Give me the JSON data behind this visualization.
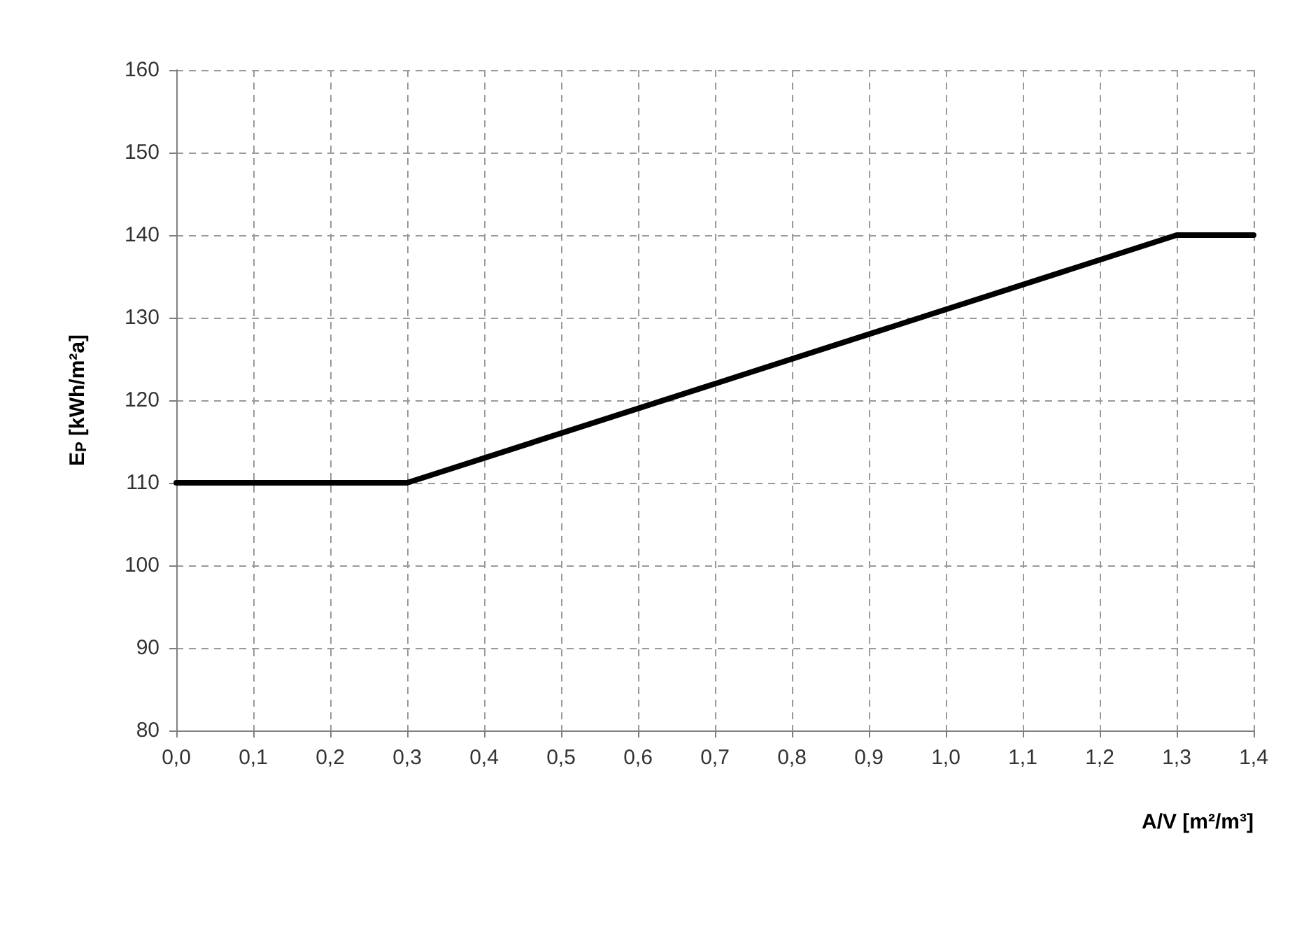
{
  "chart_data": {
    "type": "line",
    "xlabel": "A/V [m²/m³]",
    "ylabel": "E$_{P}$ [kWh/m²a]",
    "x": [
      0,
      0.3,
      1.3,
      1.4
    ],
    "series": [
      {
        "color": "#000000",
        "values": [
          110,
          110,
          140,
          140
        ]
      }
    ],
    "xlim": [
      0,
      1.4
    ],
    "xticks": [
      {
        "value": 0,
        "label": "0,0"
      },
      {
        "value": 0.1,
        "label": "0,1"
      },
      {
        "value": 0.2,
        "label": "0,2"
      },
      {
        "value": 0.3,
        "label": "0,3"
      },
      {
        "value": 0.4,
        "label": "0,4"
      },
      {
        "value": 0.5,
        "label": "0,5"
      },
      {
        "value": 0.6,
        "label": "0,6"
      },
      {
        "value": 0.7,
        "label": "0,7"
      },
      {
        "value": 0.8,
        "label": "0,8"
      },
      {
        "value": 0.9,
        "label": "0,9"
      },
      {
        "value": 1,
        "label": "1,0"
      },
      {
        "value": 1.1,
        "label": "1,1"
      },
      {
        "value": 1.2,
        "label": "1,2"
      },
      {
        "value": 1.3,
        "label": "1,3"
      },
      {
        "value": 1.4,
        "label": "1,4"
      }
    ],
    "ylim": [
      80,
      160
    ],
    "yticks": [
      80,
      90,
      100,
      110,
      120,
      130,
      140,
      150,
      160
    ],
    "grid": true,
    "marker": "none",
    "line_style": "solid"
  }
}
